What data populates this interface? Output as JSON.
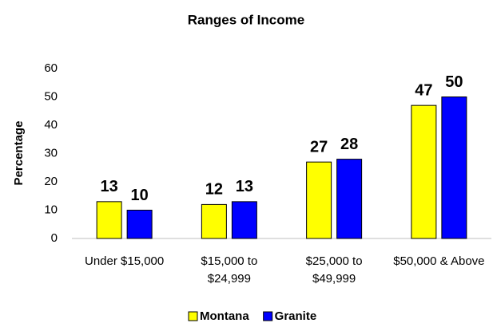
{
  "chart_data": {
    "type": "bar",
    "title": "Ranges of Income",
    "y_label": "Percentage",
    "categories": [
      "Under $15,000",
      "$15,000 to $24,999",
      "$25,000 to $49,999",
      "$50,000 & Above"
    ],
    "series": [
      {
        "name": "Montana",
        "color": "#ffff00",
        "values": [
          13,
          12,
          27,
          47
        ]
      },
      {
        "name": "Granite",
        "color": "#0000ff",
        "values": [
          10,
          13,
          28,
          50
        ]
      }
    ],
    "ylim": [
      0,
      60
    ],
    "yticks": [
      0,
      10,
      20,
      30,
      40,
      50,
      60
    ],
    "grid": false,
    "legend": "bottom"
  }
}
